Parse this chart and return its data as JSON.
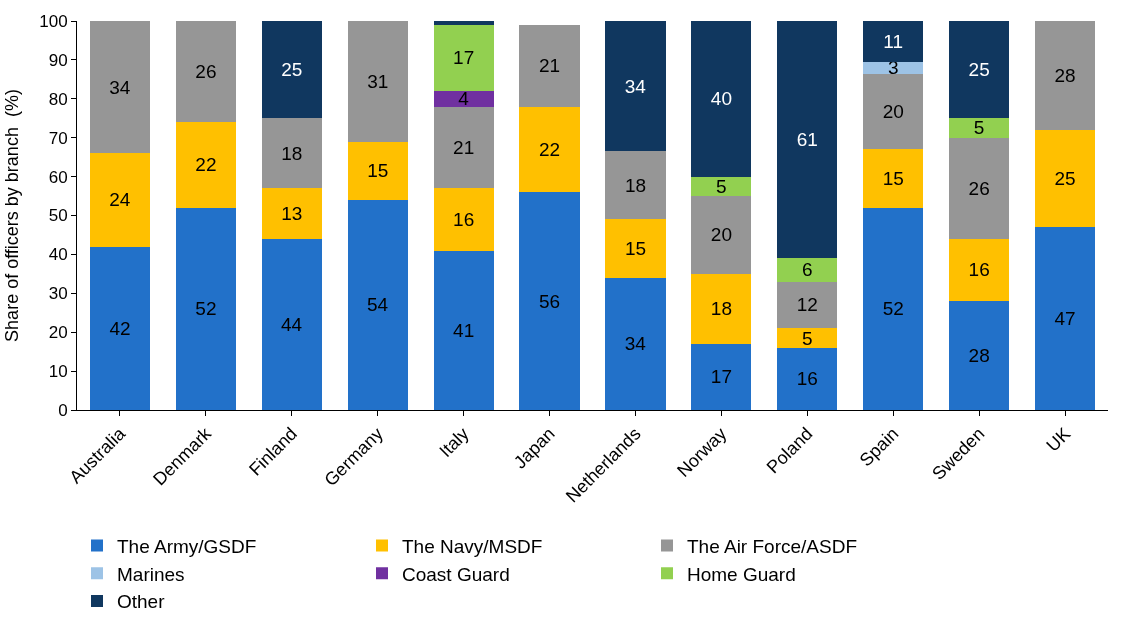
{
  "chart_data": {
    "type": "bar",
    "stacked": true,
    "ylabel": "Share of officers by branch  (%)",
    "categories": [
      "Australia",
      "Denmark",
      "Finland",
      "Germany",
      "Italy",
      "Japan",
      "Netherlands",
      "Norway",
      "Poland",
      "Spain",
      "Sweden",
      "UK"
    ],
    "series": [
      {
        "name": "The Army/GSDF",
        "color": "#2271c9",
        "values": [
          42,
          52,
          44,
          54,
          41,
          56,
          34,
          17,
          16,
          52,
          28,
          47
        ],
        "value_labels": [
          "42",
          "52",
          "44",
          "54",
          "41",
          "56",
          "34",
          "17",
          "16",
          "52",
          "28",
          "47"
        ]
      },
      {
        "name": "The Navy/MSDF",
        "color": "#ffc000",
        "values": [
          24,
          22,
          13,
          15,
          16,
          22,
          15,
          18,
          5,
          15,
          16,
          25
        ],
        "value_labels": [
          "24",
          "22",
          "13",
          "15",
          "16",
          "22",
          "15",
          "18",
          "5",
          "15",
          "16",
          "25"
        ]
      },
      {
        "name": "The Air Force/ASDF",
        "color": "#969696",
        "values": [
          34,
          26,
          18,
          31,
          21,
          21,
          17.5,
          20,
          12,
          19.5,
          26,
          28
        ],
        "value_labels": [
          "34",
          "26",
          "18",
          "31",
          "21",
          "21",
          "18",
          "20",
          "12",
          "20",
          "26",
          "28"
        ]
      },
      {
        "name": "Marines",
        "color": "#9dc3e6",
        "values": [
          null,
          null,
          null,
          null,
          null,
          null,
          null,
          null,
          null,
          3,
          null,
          null
        ],
        "value_labels": [
          null,
          null,
          null,
          null,
          null,
          null,
          null,
          null,
          null,
          "3",
          null,
          null
        ]
      },
      {
        "name": "Coast Guard",
        "color": "#7030a0",
        "values": [
          null,
          null,
          null,
          null,
          4,
          null,
          null,
          null,
          null,
          null,
          null,
          null
        ],
        "value_labels": [
          null,
          null,
          null,
          null,
          "4",
          null,
          null,
          null,
          null,
          null,
          null,
          null
        ]
      },
      {
        "name": "Home Guard",
        "color": "#92d050",
        "values": [
          null,
          null,
          null,
          null,
          17,
          null,
          null,
          5,
          6,
          null,
          5,
          null
        ],
        "value_labels": [
          null,
          null,
          null,
          null,
          "17",
          null,
          null,
          "5",
          "6",
          null,
          "5",
          null
        ]
      },
      {
        "name": "Other",
        "color": "#10375f",
        "values": [
          null,
          null,
          25,
          null,
          1,
          null,
          33.5,
          40,
          61,
          10.5,
          25,
          null
        ],
        "value_labels": [
          null,
          null,
          "25",
          null,
          null,
          null,
          "34",
          "40",
          "61",
          "11",
          "25",
          null
        ]
      }
    ],
    "ylim": [
      0,
      100
    ],
    "yticks": [
      0,
      10,
      20,
      30,
      40,
      50,
      60,
      70,
      80,
      90,
      100
    ],
    "legend": "bottom"
  }
}
